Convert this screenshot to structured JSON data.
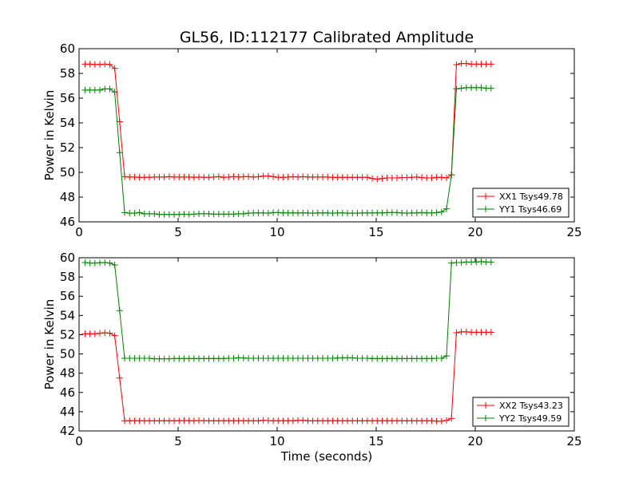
{
  "chart_data": [
    {
      "type": "line",
      "title": "GL56, ID:112177 Calibrated Amplitude",
      "xlabel": "",
      "ylabel": "Power in Kelvin",
      "xlim": [
        0,
        25
      ],
      "ylim": [
        46,
        60
      ],
      "xticks": [
        0,
        5,
        10,
        15,
        20,
        25
      ],
      "yticks": [
        46,
        48,
        50,
        52,
        54,
        56,
        58,
        60
      ],
      "grid": false,
      "legend_position": "lower-right",
      "x_start": 0.3,
      "x_step": 0.25,
      "series": [
        {
          "name": "XX1 Tsys49.78",
          "color": "#ff0000",
          "values": [
            58.75,
            58.75,
            58.72,
            58.72,
            58.75,
            58.72,
            58.4,
            54.1,
            49.65,
            49.62,
            49.62,
            49.6,
            49.6,
            49.6,
            49.62,
            49.62,
            49.62,
            49.65,
            49.62,
            49.62,
            49.62,
            49.62,
            49.6,
            49.62,
            49.6,
            49.6,
            49.62,
            49.65,
            49.6,
            49.62,
            49.65,
            49.62,
            49.65,
            49.65,
            49.62,
            49.65,
            49.7,
            49.7,
            49.65,
            49.6,
            49.6,
            49.62,
            49.65,
            49.62,
            49.65,
            49.62,
            49.62,
            49.62,
            49.62,
            49.62,
            49.6,
            49.6,
            49.6,
            49.6,
            49.6,
            49.6,
            49.6,
            49.6,
            49.5,
            49.45,
            49.5,
            49.55,
            49.55,
            49.55,
            49.58,
            49.58,
            49.6,
            49.62,
            49.58,
            49.55,
            49.55,
            49.6,
            49.6,
            49.55,
            49.8,
            58.7,
            58.8,
            58.8,
            58.75,
            58.75,
            58.75,
            58.75,
            58.75
          ]
        },
        {
          "name": "YY1 Tsys46.69",
          "color": "#008000",
          "values": [
            56.65,
            56.65,
            56.65,
            56.65,
            56.75,
            56.75,
            56.5,
            51.6,
            46.75,
            46.7,
            46.7,
            46.75,
            46.65,
            46.65,
            46.65,
            46.6,
            46.6,
            46.6,
            46.6,
            46.6,
            46.62,
            46.6,
            46.62,
            46.65,
            46.65,
            46.65,
            46.62,
            46.62,
            46.62,
            46.62,
            46.62,
            46.65,
            46.65,
            46.7,
            46.72,
            46.72,
            46.72,
            46.7,
            46.75,
            46.75,
            46.72,
            46.72,
            46.72,
            46.72,
            46.72,
            46.72,
            46.7,
            46.72,
            46.72,
            46.72,
            46.7,
            46.72,
            46.72,
            46.7,
            46.7,
            46.7,
            46.72,
            46.72,
            46.72,
            46.72,
            46.72,
            46.75,
            46.75,
            46.75,
            46.72,
            46.7,
            46.72,
            46.72,
            46.75,
            46.72,
            46.72,
            46.75,
            46.8,
            47.05,
            49.8,
            56.75,
            56.8,
            56.85,
            56.85,
            56.85,
            56.85,
            56.8,
            56.8
          ]
        }
      ]
    },
    {
      "type": "line",
      "title": "",
      "xlabel": "Time (seconds)",
      "ylabel": "Power in Kelvin",
      "xlim": [
        0,
        25
      ],
      "ylim": [
        42,
        60
      ],
      "xticks": [
        0,
        5,
        10,
        15,
        20,
        25
      ],
      "yticks": [
        42,
        44,
        46,
        48,
        50,
        52,
        54,
        56,
        58,
        60
      ],
      "grid": false,
      "legend_position": "lower-right",
      "x_start": 0.3,
      "x_step": 0.25,
      "series": [
        {
          "name": "XX2 Tsys43.23",
          "color": "#ff0000",
          "values": [
            52.1,
            52.1,
            52.1,
            52.15,
            52.2,
            52.15,
            51.9,
            47.5,
            43.05,
            43.05,
            43.05,
            43.05,
            43.05,
            43.05,
            43.05,
            43.05,
            43.05,
            43.05,
            43.05,
            43.05,
            43.08,
            43.05,
            43.05,
            43.08,
            43.05,
            43.05,
            43.05,
            43.05,
            43.05,
            43.05,
            43.05,
            43.05,
            43.05,
            43.05,
            43.05,
            43.05,
            43.1,
            43.08,
            43.05,
            43.05,
            43.05,
            43.05,
            43.05,
            43.1,
            43.1,
            43.05,
            43.05,
            43.05,
            43.05,
            43.05,
            43.05,
            43.05,
            43.05,
            43.05,
            43.05,
            43.05,
            43.05,
            43.05,
            43.05,
            43.05,
            43.05,
            43.05,
            43.05,
            43.05,
            43.05,
            43.05,
            43.05,
            43.05,
            43.05,
            43.05,
            43.05,
            43.02,
            43.02,
            43.1,
            43.3,
            52.2,
            52.3,
            52.3,
            52.25,
            52.25,
            52.25,
            52.25,
            52.25
          ]
        },
        {
          "name": "YY2 Tsys49.59",
          "color": "#008000",
          "values": [
            59.5,
            59.45,
            59.45,
            59.48,
            59.5,
            59.45,
            59.25,
            54.5,
            49.55,
            49.55,
            49.55,
            49.55,
            49.55,
            49.55,
            49.5,
            49.5,
            49.5,
            49.5,
            49.52,
            49.52,
            49.52,
            49.52,
            49.52,
            49.52,
            49.52,
            49.52,
            49.52,
            49.52,
            49.52,
            49.55,
            49.55,
            49.6,
            49.58,
            49.55,
            49.55,
            49.55,
            49.55,
            49.55,
            49.55,
            49.55,
            49.55,
            49.55,
            49.55,
            49.55,
            49.55,
            49.55,
            49.55,
            49.55,
            49.55,
            49.55,
            49.55,
            49.58,
            49.6,
            49.6,
            49.6,
            49.55,
            49.55,
            49.55,
            49.52,
            49.52,
            49.52,
            49.52,
            49.52,
            49.52,
            49.52,
            49.52,
            49.52,
            49.52,
            49.52,
            49.52,
            49.52,
            49.55,
            49.55,
            49.8,
            59.45,
            59.5,
            59.5,
            59.55,
            59.55,
            59.55,
            59.6,
            59.55,
            59.55
          ]
        }
      ]
    }
  ]
}
